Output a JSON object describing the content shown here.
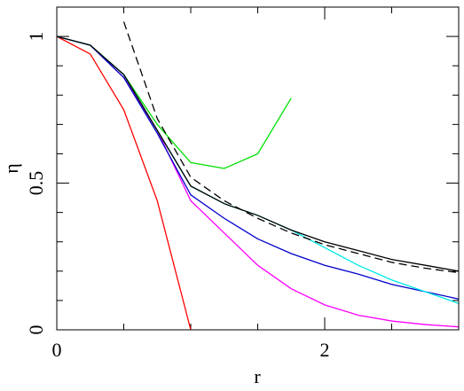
{
  "chart_data": {
    "type": "line",
    "x_label": "r",
    "y_label": "η",
    "x": [
      0,
      0.25,
      0.5,
      0.75,
      1,
      1.25,
      1.5,
      1.75,
      2,
      2.25,
      2.5,
      2.75,
      3
    ],
    "xlim": [
      0,
      3
    ],
    "ylim": [
      0,
      1.1
    ],
    "xticks": [
      0,
      2
    ],
    "xminor": [
      0.5,
      1,
      1.5,
      2.5
    ],
    "yticks": [
      0,
      0.5,
      1
    ],
    "yminor": [
      0.1,
      0.2,
      0.3,
      0.4,
      0.6,
      0.7,
      0.8,
      0.9
    ],
    "series": [
      {
        "color": "#ff0000",
        "dash": false,
        "values": [
          1,
          0.94,
          0.75,
          0.44,
          0,
          null,
          null,
          null,
          null,
          null,
          null,
          null,
          null
        ]
      },
      {
        "color": "#00e000",
        "dash": false,
        "values": [
          1,
          0.97,
          0.87,
          0.7,
          0.57,
          0.55,
          0.6,
          0.79,
          null,
          null,
          null,
          null,
          null
        ]
      },
      {
        "color": "#ff00ff",
        "dash": false,
        "values": [
          1,
          0.97,
          0.86,
          0.68,
          0.44,
          0.33,
          0.22,
          0.14,
          0.085,
          0.05,
          0.03,
          0.018,
          0.01
        ]
      },
      {
        "color": "#0000cc",
        "dash": false,
        "values": [
          1,
          0.97,
          0.86,
          0.67,
          0.46,
          0.38,
          0.31,
          0.26,
          0.22,
          0.19,
          0.155,
          0.13,
          0.105
        ]
      },
      {
        "color": "#00e8e8",
        "dash": false,
        "values": [
          1,
          0.97,
          0.87,
          0.68,
          0.49,
          0.43,
          0.39,
          0.34,
          0.28,
          0.22,
          0.17,
          0.13,
          0.09
        ]
      },
      {
        "color": "#000000",
        "dash": true,
        "values": [
          null,
          null,
          1.05,
          0.72,
          0.52,
          0.44,
          0.38,
          0.33,
          0.29,
          0.26,
          0.23,
          0.21,
          0.195
        ]
      },
      {
        "color": "#000000",
        "dash": false,
        "values": [
          1,
          0.97,
          0.87,
          0.68,
          0.49,
          0.43,
          0.39,
          0.34,
          0.3,
          0.27,
          0.24,
          0.22,
          0.2
        ]
      }
    ]
  }
}
